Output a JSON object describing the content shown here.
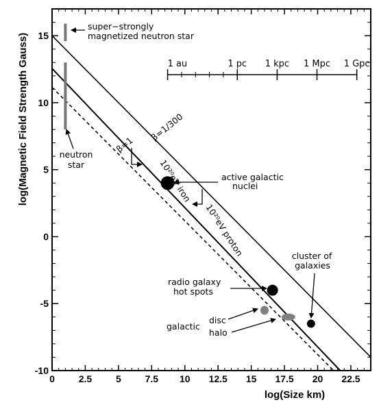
{
  "chart_data": {
    "type": "line",
    "xlabel": "log(Size km)",
    "ylabel": "log(Magnetic Field Strength Gauss)",
    "xlim": [
      0,
      24
    ],
    "ylim": [
      -10,
      17
    ],
    "xticks": [
      0,
      2.5,
      5,
      7.5,
      10,
      12.5,
      15,
      17.5,
      20,
      22.5
    ],
    "yticks": [
      -10,
      -5,
      0,
      5,
      10,
      15
    ],
    "xtick_labels": [
      "0",
      "2.5",
      "5",
      "7.5",
      "10",
      "12.5",
      "15",
      "17.5",
      "20",
      "22.5"
    ],
    "ytick_labels": [
      "-10",
      "-5",
      "0",
      "5",
      "10",
      "15"
    ],
    "series": [
      {
        "label": "β=1/300",
        "style": "solid",
        "x": [
          0,
          24
        ],
        "y": [
          15.0,
          -9.0
        ]
      },
      {
        "label": "10²⁰eV proton",
        "style": "solid",
        "x": [
          0,
          21.7
        ],
        "y": [
          12.55,
          -10.0
        ]
      },
      {
        "label": "10²⁰eV iron",
        "style": "dashed",
        "x": [
          0,
          21.2
        ],
        "y": [
          11.15,
          -10.0
        ]
      }
    ],
    "beta1_label": "β=1",
    "objects": [
      {
        "label": "super−strongly magnetized neutron star",
        "kind": "bar",
        "x": 1.0,
        "y_range": [
          14.6,
          15.9
        ]
      },
      {
        "label": "neutron star",
        "kind": "bar",
        "x": 1.0,
        "y_range": [
          8.0,
          13.0
        ]
      },
      {
        "label": "active galactic nuclei",
        "kind": "dot",
        "x": 8.7,
        "y": 4.0,
        "size": "large"
      },
      {
        "label": "radio galaxy hot spots",
        "kind": "dot",
        "x": 16.6,
        "y": -4.0,
        "size": "medium"
      },
      {
        "label": "cluster of galaxies",
        "kind": "dot",
        "x": 19.5,
        "y": -6.5,
        "size": "small"
      },
      {
        "label": "galactic disc",
        "kind": "blob",
        "x": 16.0,
        "y": -5.5,
        "color": "#808080"
      },
      {
        "label": "galactic halo",
        "kind": "blob",
        "x": 17.8,
        "y": -6.0,
        "color": "#808080"
      }
    ],
    "distance_scale": {
      "labels": [
        "1 au",
        "1 pc",
        "1 kpc",
        "1 Mpc",
        "1 Gpc"
      ],
      "x": [
        8.7,
        13.95,
        16.95,
        19.95,
        22.95
      ]
    },
    "annotations": {
      "super_line1": "super−strongly",
      "super_line2": "magnetized neutron star",
      "neutron_line1": "neutron",
      "neutron_line2": "star",
      "agn_line1": "active galactic",
      "agn_line2": "nuclei",
      "radio_line1": "radio galaxy",
      "radio_line2": "hot spots",
      "cluster_line1": "cluster of",
      "cluster_line2": "galaxies",
      "galactic": "galactic",
      "disc": "disc",
      "halo": "halo"
    },
    "colors": {
      "axes": "#000000",
      "bar": "#777777",
      "blob": "#808080"
    }
  }
}
